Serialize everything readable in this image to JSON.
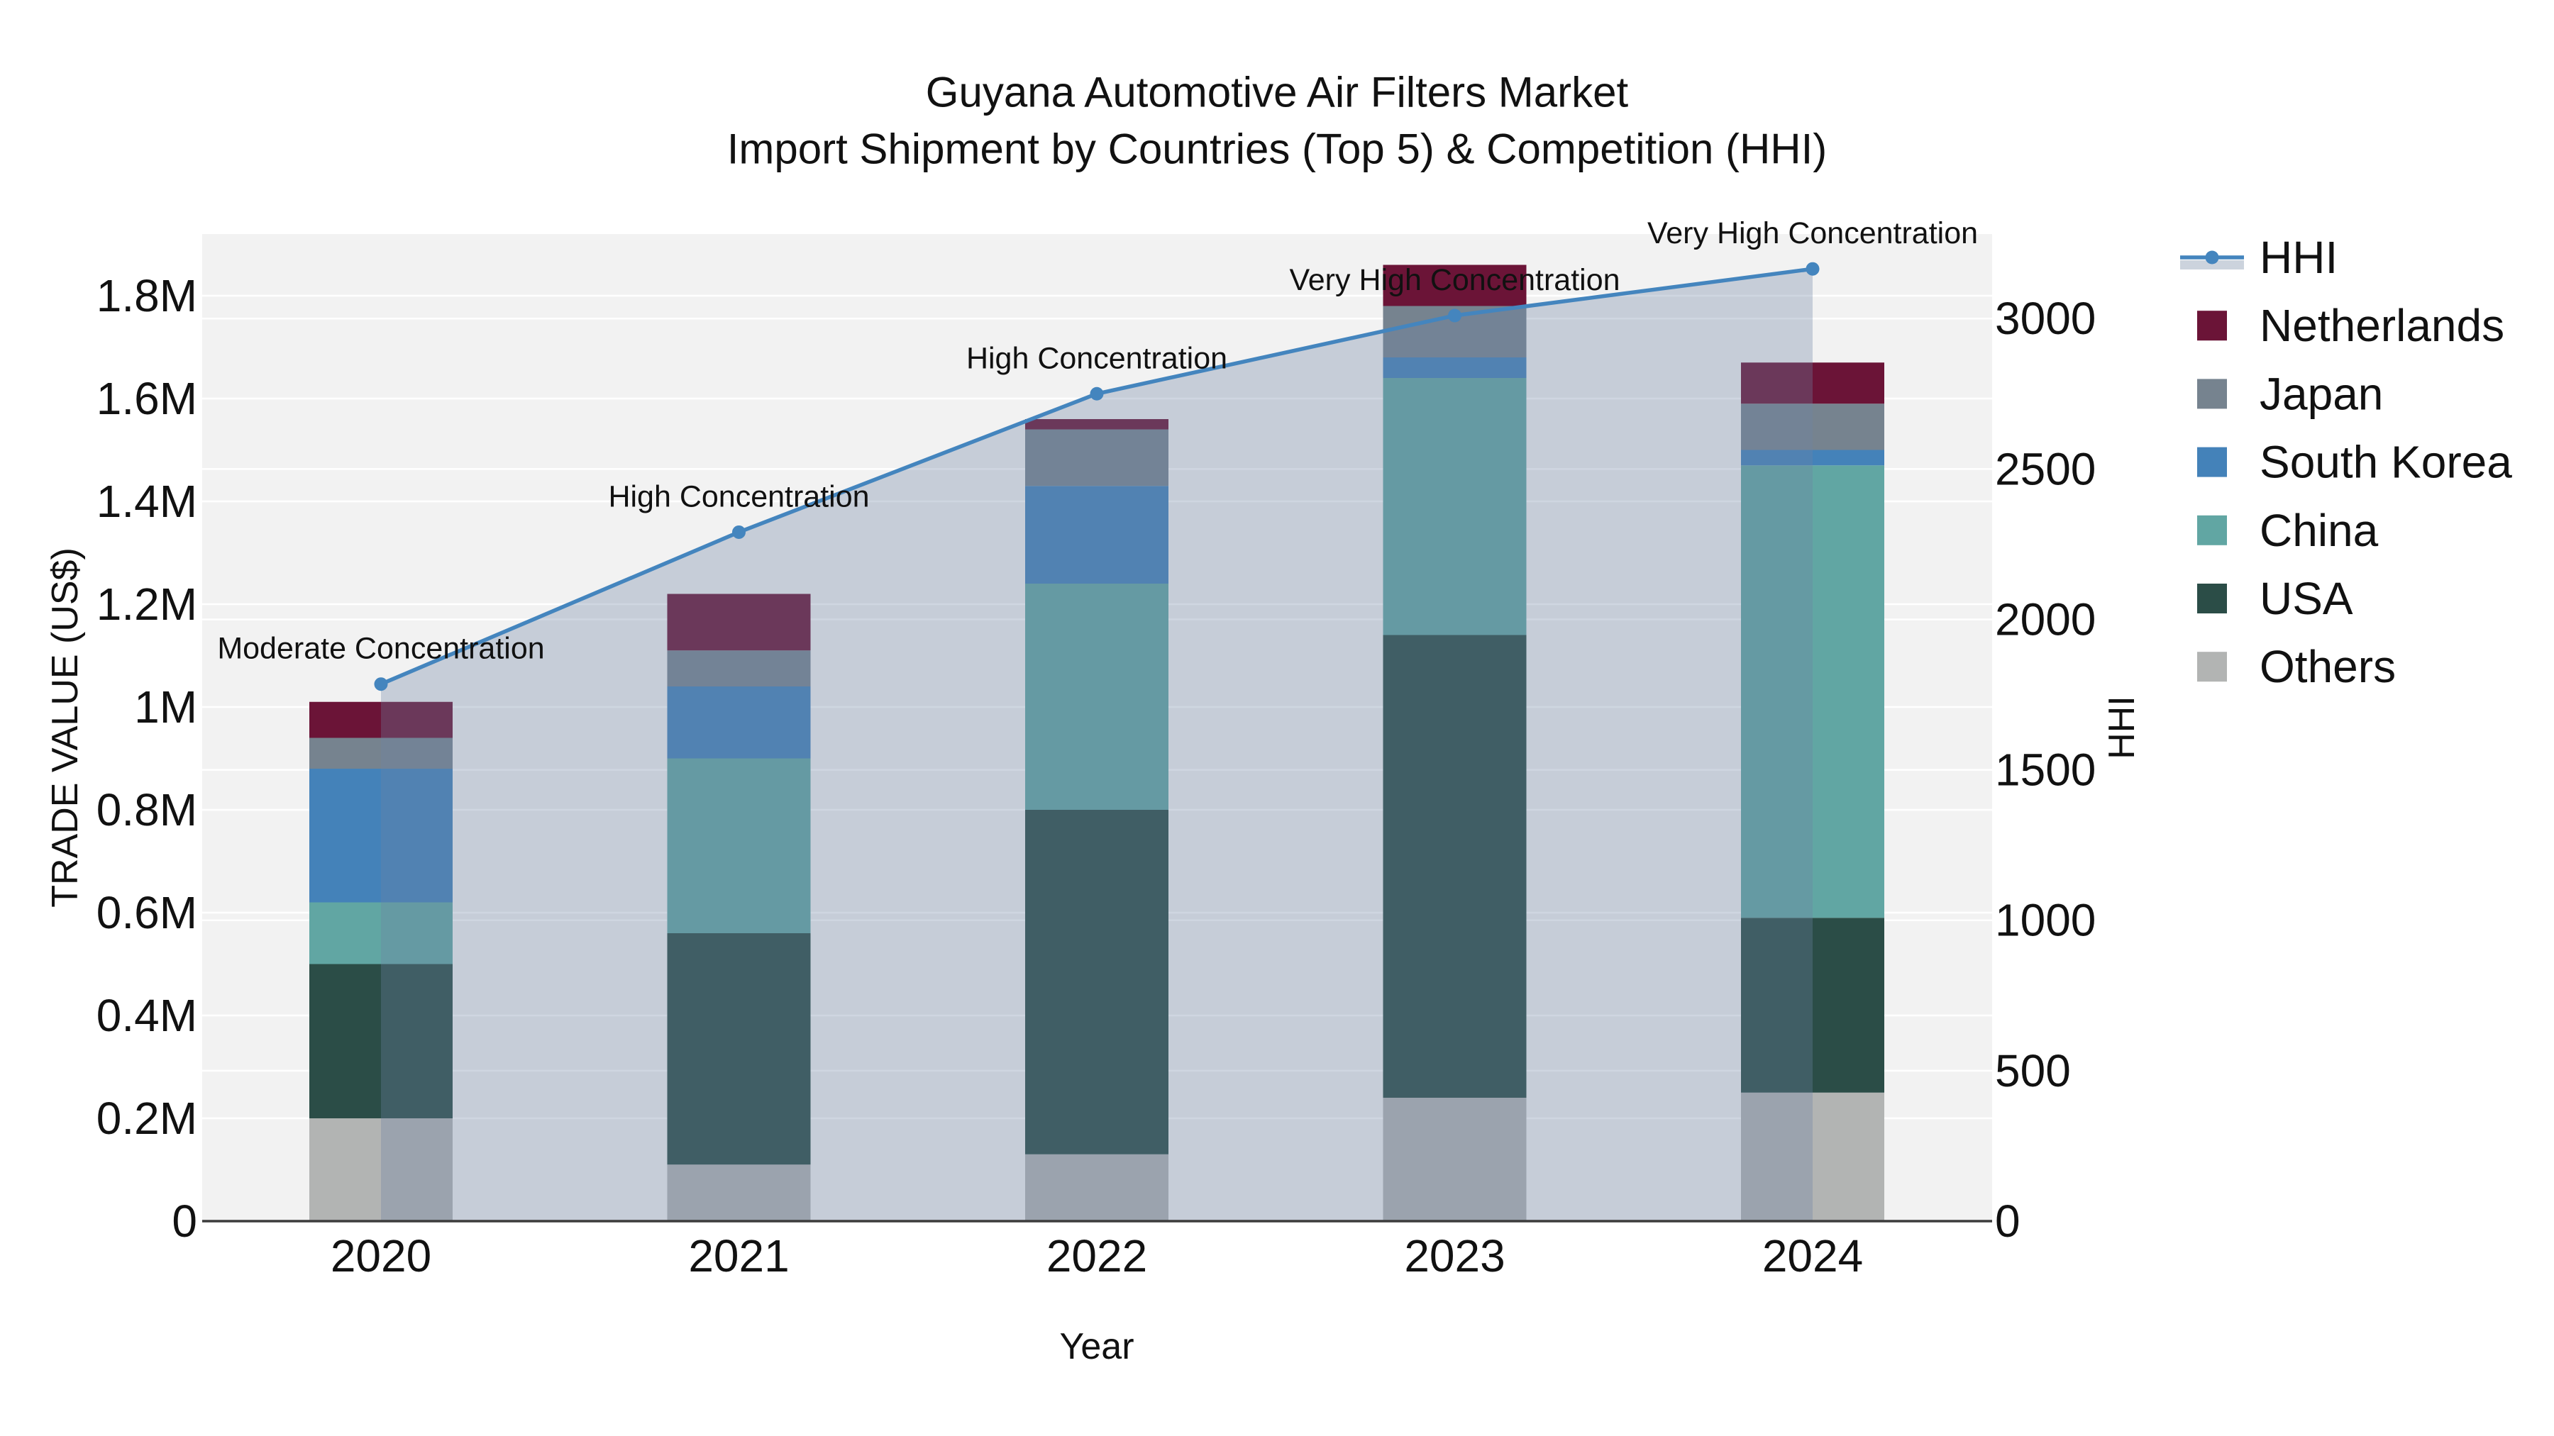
{
  "figure": {
    "title_line1": "Guyana Automotive Air Filters Market",
    "title_line2": "Import Shipment by Countries (Top 5) & Competition (HHI)"
  },
  "axes": {
    "x_title": "Year",
    "y_left_title": "TRADE VALUE (US$)",
    "y_right_title": "HHI",
    "y_left_ticks": {
      "labels": [
        "0",
        "0.2M",
        "0.4M",
        "0.6M",
        "0.8M",
        "1M",
        "1.2M",
        "1.4M",
        "1.6M",
        "1.8M"
      ],
      "values_musd": [
        0,
        0.2,
        0.4,
        0.6,
        0.8,
        1.0,
        1.2,
        1.4,
        1.6,
        1.8
      ]
    },
    "y_right_ticks": {
      "labels": [
        "0",
        "500",
        "1000",
        "1500",
        "2000",
        "2500",
        "3000"
      ],
      "values": [
        0,
        500,
        1000,
        1500,
        2000,
        2500,
        3000
      ]
    }
  },
  "chart_data": {
    "type": "stacked-bar+line",
    "title": "Guyana Automotive Air Filters Market — Import Shipment by Countries (Top 5) & Competition (HHI)",
    "categories": [
      "2020",
      "2021",
      "2022",
      "2023",
      "2024"
    ],
    "xlabel": "Year",
    "ylabel_left": "TRADE VALUE (US$)",
    "ylabel_right": "HHI",
    "ylim_left_musd": [
      0,
      1.92
    ],
    "ylim_right": [
      0,
      3281
    ],
    "bar_value_unit": "US$ millions (estimated from axis)",
    "bar_series_bottom_to_top": [
      {
        "name": "Others",
        "color": "#B2B4B3",
        "values_musd": [
          0.2,
          0.11,
          0.13,
          0.24,
          0.25
        ]
      },
      {
        "name": "USA",
        "color": "#2B4D47",
        "values_musd": [
          0.3,
          0.45,
          0.67,
          0.9,
          0.34
        ]
      },
      {
        "name": "China",
        "color": "#61A6A3",
        "values_musd": [
          0.12,
          0.34,
          0.44,
          0.5,
          0.88
        ]
      },
      {
        "name": "South Korea",
        "color": "#4482B9",
        "values_musd": [
          0.26,
          0.14,
          0.19,
          0.04,
          0.03
        ]
      },
      {
        "name": "Japan",
        "color": "#76838F",
        "values_musd": [
          0.06,
          0.07,
          0.11,
          0.1,
          0.09
        ]
      },
      {
        "name": "Netherlands",
        "color": "#6B1437",
        "values_musd": [
          0.07,
          0.11,
          0.02,
          0.08,
          0.08
        ]
      }
    ],
    "bar_totals_musd": [
      1.01,
      1.22,
      1.56,
      1.86,
      1.67
    ],
    "line_series": {
      "name": "HHI",
      "color": "#4485BE",
      "area_fill": "rgba(110,132,165,0.33)",
      "values": [
        1785,
        2290,
        2750,
        3010,
        3165
      ]
    },
    "annotations": [
      {
        "year": "2020",
        "text": "Moderate Concentration"
      },
      {
        "year": "2021",
        "text": "High Concentration"
      },
      {
        "year": "2022",
        "text": "High Concentration"
      },
      {
        "year": "2023",
        "text": "Very High Concentration"
      },
      {
        "year": "2024",
        "text": "Very High Concentration"
      }
    ],
    "legend_position": "right",
    "grid": true
  },
  "legend": {
    "items": [
      {
        "label": "HHI",
        "type": "line",
        "color": "#4485BE",
        "band_color": "#CCD3DD"
      },
      {
        "label": "Netherlands",
        "type": "swatch",
        "color": "#6B1437"
      },
      {
        "label": "Japan",
        "type": "swatch",
        "color": "#76838F"
      },
      {
        "label": "South Korea",
        "type": "swatch",
        "color": "#4482B9"
      },
      {
        "label": "China",
        "type": "swatch",
        "color": "#61A6A3"
      },
      {
        "label": "USA",
        "type": "swatch",
        "color": "#2B4D47"
      },
      {
        "label": "Others",
        "type": "swatch",
        "color": "#B2B4B3"
      }
    ]
  },
  "style": {
    "plot_bg": "#F2F2F2",
    "grid_color": "#FFFFFF",
    "axis_line_color": "#3C3C3C",
    "text_color": "#111111"
  }
}
